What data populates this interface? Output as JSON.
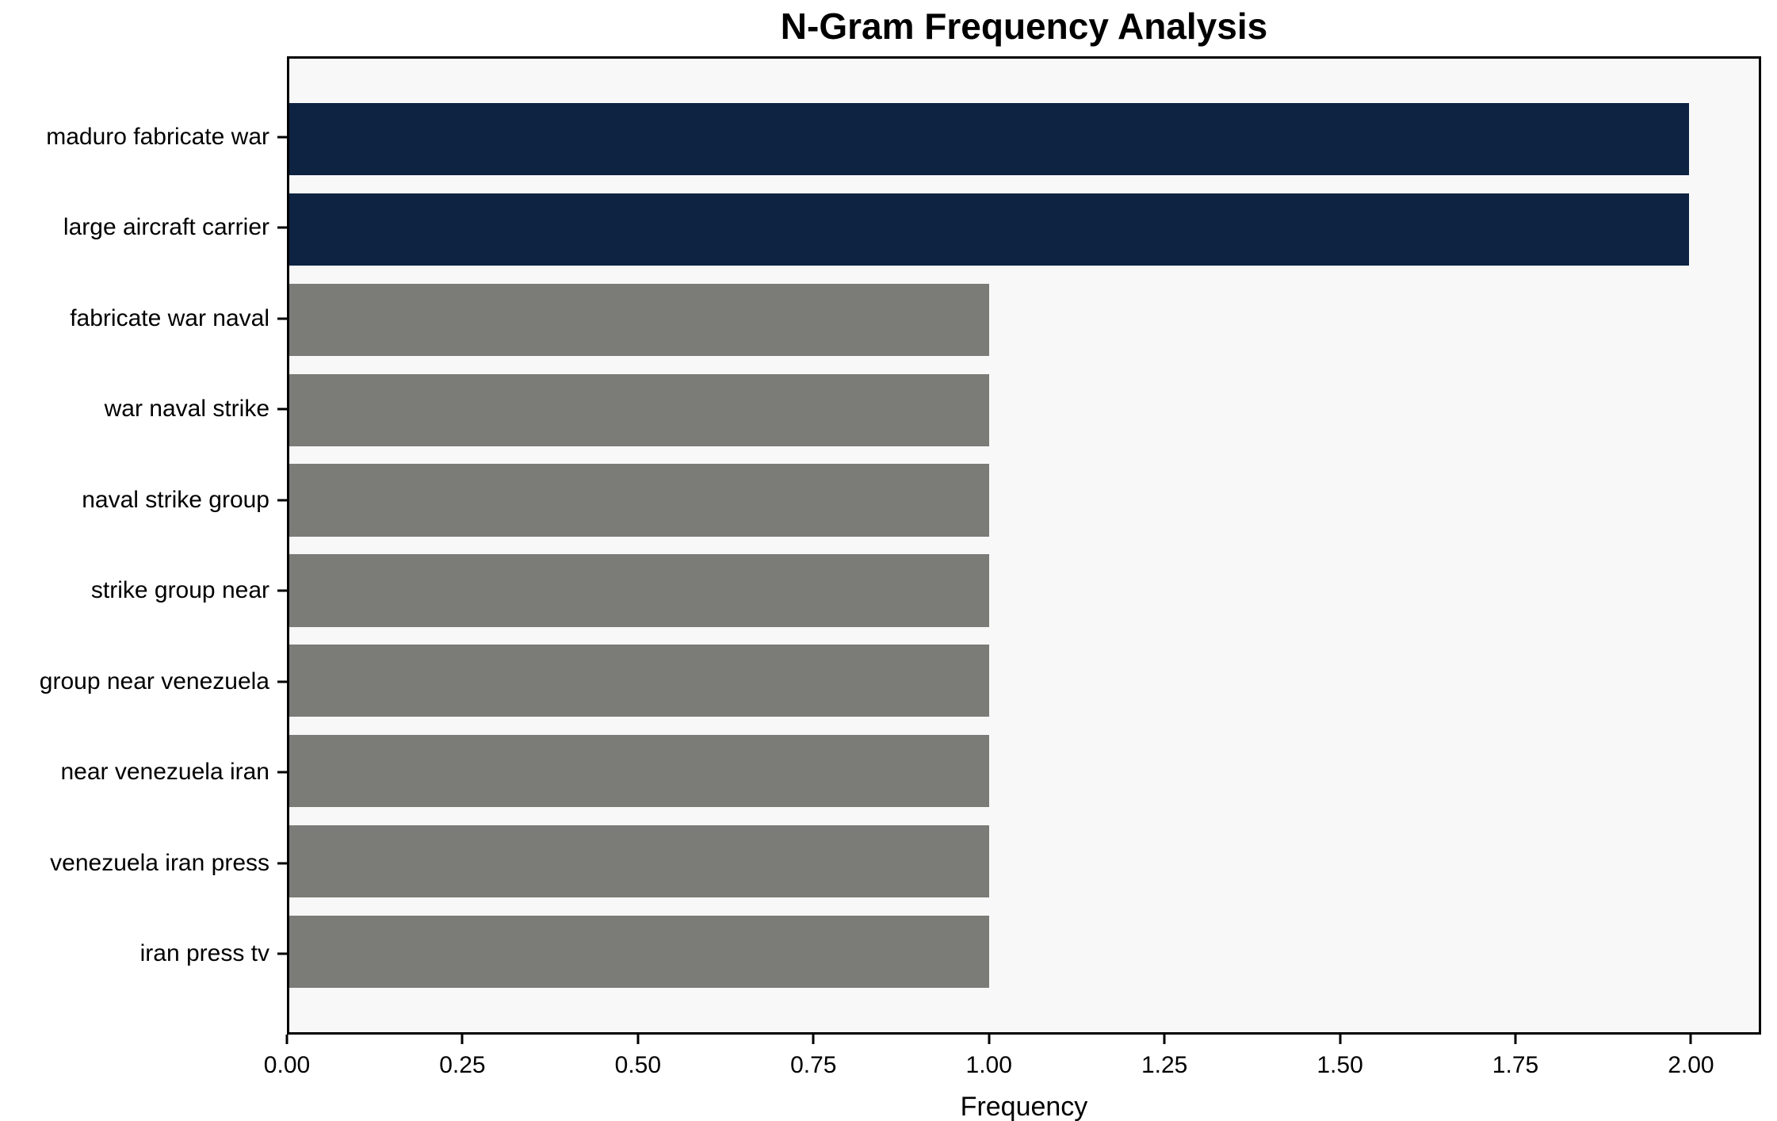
{
  "chart_data": {
    "type": "bar",
    "orientation": "horizontal",
    "title": "N-Gram Frequency Analysis",
    "xlabel": "Frequency",
    "ylabel": "",
    "categories": [
      "maduro fabricate war",
      "large aircraft carrier",
      "fabricate war naval",
      "war naval strike",
      "naval strike group",
      "strike group near",
      "group near venezuela",
      "near venezuela iran",
      "venezuela iran press",
      "iran press tv"
    ],
    "values": [
      2,
      2,
      1,
      1,
      1,
      1,
      1,
      1,
      1,
      1
    ],
    "bar_colors": [
      "#0e2342",
      "#0e2342",
      "#7b7b77",
      "#7b7b77",
      "#7b7b77",
      "#7b7b77",
      "#7b7b77",
      "#7b7b77",
      "#7b7b77",
      "#7b7b77"
    ],
    "highlight_color": "#0e2342",
    "default_color": "#7b7b77",
    "xtick_values": [
      0.0,
      0.25,
      0.5,
      0.75,
      1.0,
      1.25,
      1.5,
      1.75,
      2.0
    ],
    "xtick_labels": [
      "0.00",
      "0.25",
      "0.50",
      "0.75",
      "1.00",
      "1.25",
      "1.50",
      "1.75",
      "2.00"
    ],
    "xlim": [
      0,
      2.1
    ],
    "grid": false,
    "legend": false,
    "axes_background": "#f8f8f8",
    "figure_background": "#ffffff"
  }
}
